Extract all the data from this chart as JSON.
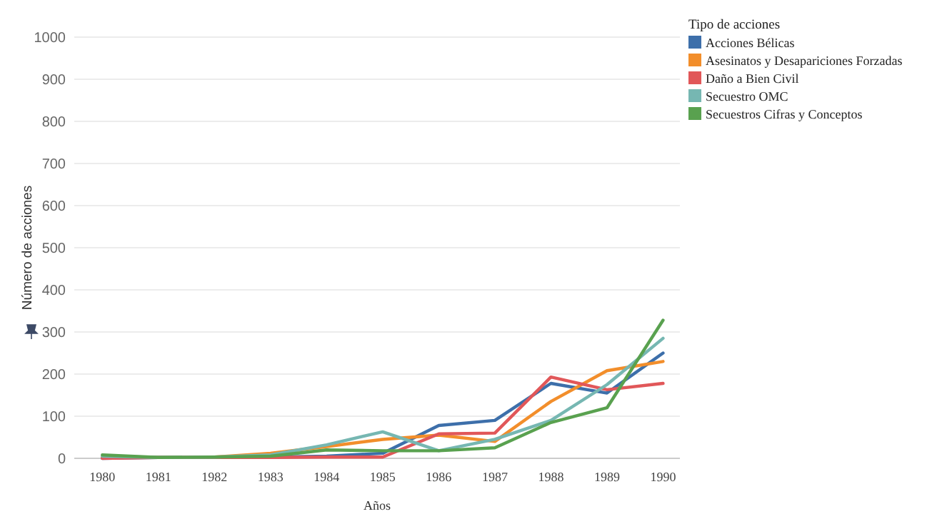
{
  "chart_data": {
    "type": "line",
    "xlabel": "Años",
    "ylabel": "Número de acciones",
    "legend_title": "Tipo de acciones",
    "legend": "top right",
    "grid": "y",
    "x": [
      1980,
      1981,
      1982,
      1983,
      1984,
      1985,
      1986,
      1987,
      1988,
      1989,
      1990
    ],
    "xlim": [
      1979.5,
      1990.3
    ],
    "xticks": [
      1980,
      1981,
      1982,
      1983,
      1984,
      1985,
      1986,
      1987,
      1988,
      1989,
      1990
    ],
    "ylim": [
      0,
      1000
    ],
    "yticks": [
      0,
      100,
      200,
      300,
      400,
      500,
      600,
      700,
      800,
      900,
      1000
    ],
    "series": [
      {
        "name": "Acciones Bélicas",
        "color": "#3d6faa",
        "values": [
          0,
          2,
          3,
          3,
          5,
          12,
          78,
          90,
          178,
          155,
          250
        ]
      },
      {
        "name": "Asesinatos y Desapariciones Forzadas",
        "color": "#f28e2b",
        "values": [
          3,
          2,
          3,
          12,
          28,
          45,
          55,
          40,
          135,
          208,
          230
        ]
      },
      {
        "name": "Daño a Bien Civil",
        "color": "#e15759",
        "values": [
          0,
          2,
          2,
          2,
          3,
          3,
          58,
          60,
          193,
          163,
          178
        ]
      },
      {
        "name": "Secuestro OMC",
        "color": "#76b7b2",
        "values": [
          5,
          2,
          3,
          8,
          32,
          63,
          18,
          45,
          90,
          175,
          285
        ]
      },
      {
        "name": "Secuestros Cifras y Conceptos",
        "color": "#59a14f",
        "values": [
          8,
          2,
          3,
          5,
          20,
          18,
          18,
          25,
          85,
          120,
          328
        ]
      }
    ]
  }
}
